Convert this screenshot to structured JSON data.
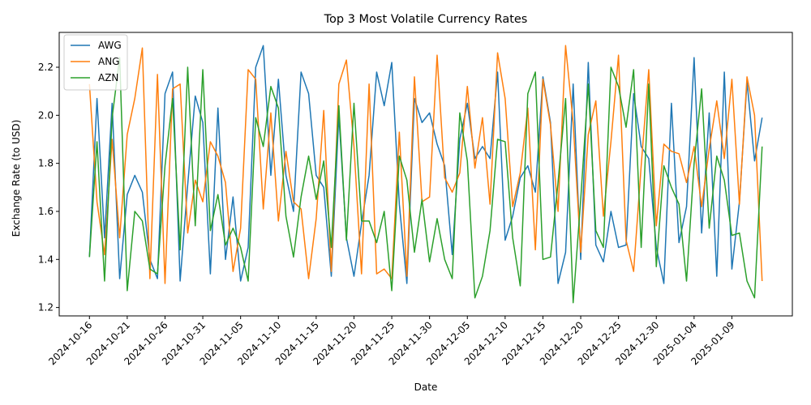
{
  "chart_data": {
    "type": "line",
    "title": "Top 3 Most Volatile Currency Rates",
    "xlabel": "Date",
    "ylabel": "Exchange Rate (to USD)",
    "x_start": "2024-10-16",
    "x_end": "2025-01-13",
    "xlim": [
      "2024-10-12",
      "2025-01-17"
    ],
    "ylim": [
      1.165,
      2.345
    ],
    "x_ticks": [
      "2024-10-16",
      "2024-10-21",
      "2024-10-26",
      "2024-10-31",
      "2024-11-05",
      "2024-11-10",
      "2024-11-15",
      "2024-11-20",
      "2024-11-25",
      "2024-11-30",
      "2024-12-05",
      "2024-12-10",
      "2024-12-15",
      "2024-12-20",
      "2024-12-25",
      "2024-12-30",
      "2025-01-04",
      "2025-01-09"
    ],
    "y_ticks": [
      1.2,
      1.4,
      1.6,
      1.8,
      2.0,
      2.2
    ],
    "legend_position": "top-left",
    "grid": false,
    "series": [
      {
        "name": "AWG",
        "color": "#1f77b4",
        "values": [
          1.41,
          2.07,
          1.49,
          2.05,
          1.32,
          1.67,
          1.75,
          1.68,
          1.4,
          1.32,
          2.09,
          2.18,
          1.31,
          1.71,
          2.08,
          1.97,
          1.34,
          2.03,
          1.4,
          1.66,
          1.31,
          1.45,
          2.2,
          2.29,
          1.75,
          2.15,
          1.75,
          1.6,
          2.18,
          2.09,
          1.75,
          1.7,
          1.33,
          2.0,
          1.49,
          1.33,
          1.55,
          1.75,
          2.18,
          2.04,
          2.22,
          1.63,
          1.3,
          2.07,
          1.97,
          2.01,
          1.88,
          1.79,
          1.42,
          1.9,
          2.05,
          1.82,
          1.87,
          1.82,
          2.18,
          1.48,
          1.58,
          1.74,
          1.79,
          1.68,
          2.16,
          1.97,
          1.3,
          1.43,
          2.13,
          1.4,
          2.22,
          1.46,
          1.39,
          1.6,
          1.45,
          1.46,
          2.09,
          1.87,
          1.82,
          1.45,
          1.3,
          2.05,
          1.47,
          1.62,
          2.24,
          1.51,
          2.01,
          1.33,
          2.18,
          1.36,
          1.64,
          2.14,
          1.81,
          1.99
        ]
      },
      {
        "name": "ANG",
        "color": "#ff7f0e",
        "values": [
          2.13,
          1.64,
          1.42,
          1.9,
          1.49,
          1.92,
          2.07,
          2.28,
          1.32,
          2.17,
          1.3,
          2.11,
          2.13,
          1.51,
          1.73,
          1.64,
          1.89,
          1.83,
          1.72,
          1.35,
          1.53,
          2.19,
          2.15,
          1.61,
          2.01,
          1.56,
          1.85,
          1.64,
          1.61,
          1.32,
          1.57,
          2.02,
          1.35,
          2.13,
          2.23,
          1.87,
          1.34,
          2.13,
          1.34,
          1.36,
          1.32,
          1.93,
          1.33,
          2.16,
          1.64,
          1.66,
          2.25,
          1.74,
          1.68,
          1.76,
          2.12,
          1.78,
          1.99,
          1.63,
          2.26,
          2.07,
          1.62,
          1.76,
          2.03,
          1.44,
          2.15,
          1.96,
          1.6,
          2.29,
          1.97,
          1.43,
          1.92,
          2.06,
          1.58,
          1.89,
          2.25,
          1.48,
          1.35,
          1.79,
          2.19,
          1.54,
          1.88,
          1.85,
          1.84,
          1.72,
          1.87,
          1.62,
          1.86,
          2.06,
          1.82,
          2.15,
          1.63,
          2.16,
          2.0,
          1.31
        ]
      },
      {
        "name": "AZN",
        "color": "#2ca02c",
        "values": [
          1.41,
          1.89,
          1.31,
          1.99,
          2.24,
          1.27,
          1.6,
          1.56,
          1.36,
          1.34,
          1.79,
          2.07,
          1.44,
          2.2,
          1.54,
          2.19,
          1.52,
          1.67,
          1.46,
          1.53,
          1.45,
          1.31,
          1.99,
          1.87,
          2.12,
          2.03,
          1.58,
          1.41,
          1.66,
          1.83,
          1.65,
          1.81,
          1.45,
          2.04,
          1.48,
          2.05,
          1.56,
          1.56,
          1.47,
          1.6,
          1.27,
          1.83,
          1.73,
          1.43,
          1.65,
          1.39,
          1.57,
          1.4,
          1.32,
          2.01,
          1.81,
          1.24,
          1.33,
          1.52,
          1.9,
          1.89,
          1.49,
          1.29,
          2.09,
          2.18,
          1.4,
          1.41,
          1.72,
          2.07,
          1.22,
          1.65,
          2.13,
          1.52,
          1.45,
          2.2,
          2.12,
          1.95,
          2.19,
          1.45,
          2.13,
          1.37,
          1.79,
          1.7,
          1.63,
          1.31,
          1.8,
          2.11,
          1.53,
          1.83,
          1.73,
          1.5,
          1.51,
          1.31,
          1.24,
          1.87
        ]
      }
    ]
  }
}
